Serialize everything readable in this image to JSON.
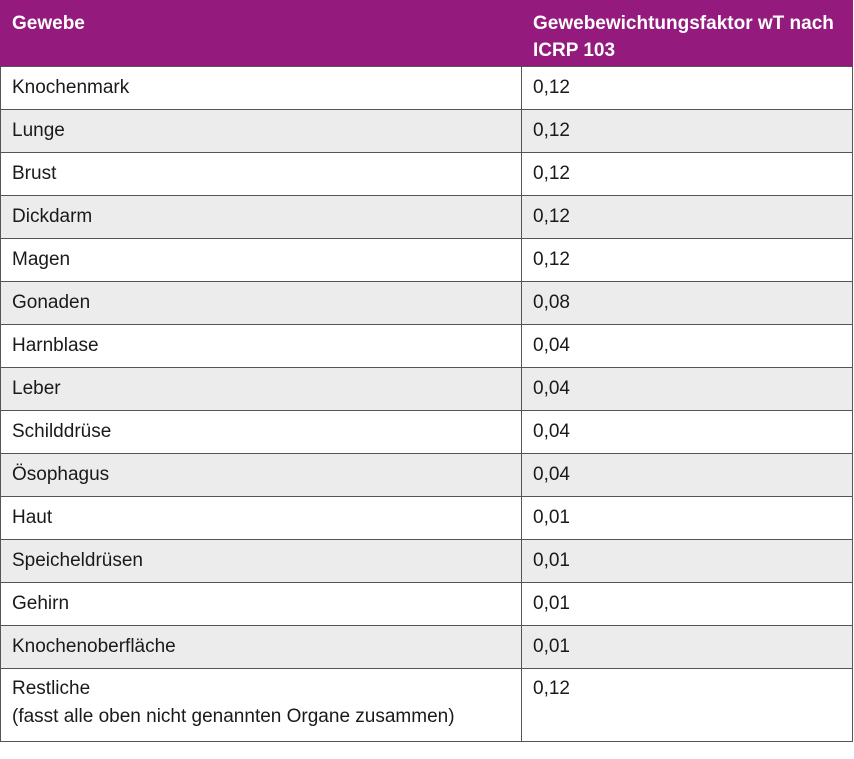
{
  "table": {
    "headers": {
      "tissue": "Gewebe",
      "factor": "Gewebewichtungsfaktor wT nach ICRP 103"
    },
    "rows": [
      {
        "tissue": "Knochenmark",
        "factor": "0,12"
      },
      {
        "tissue": "Lunge",
        "factor": "0,12"
      },
      {
        "tissue": "Brust",
        "factor": "0,12"
      },
      {
        "tissue": "Dickdarm",
        "factor": "0,12"
      },
      {
        "tissue": "Magen",
        "factor": "0,12"
      },
      {
        "tissue": "Gonaden",
        "factor": "0,08"
      },
      {
        "tissue": "Harnblase",
        "factor": "0,04"
      },
      {
        "tissue": "Leber",
        "factor": "0,04"
      },
      {
        "tissue": "Schilddrüse",
        "factor": "0,04"
      },
      {
        "tissue": "Ösophagus",
        "factor": "0,04"
      },
      {
        "tissue": "Haut",
        "factor": "0,01"
      },
      {
        "tissue": "Speicheldrüsen",
        "factor": "0,01"
      },
      {
        "tissue": "Gehirn",
        "factor": "0,01"
      },
      {
        "tissue": "Knochenoberfläche",
        "factor": "0,01"
      }
    ],
    "last_row": {
      "tissue": "Restliche",
      "note": "(fasst alle oben nicht genannten Organe zusammen)",
      "factor": "0,12"
    }
  },
  "colors": {
    "header_background": "#951a7d",
    "header_text": "#ffffff",
    "stripe": "#ececec",
    "border": "#555555"
  }
}
